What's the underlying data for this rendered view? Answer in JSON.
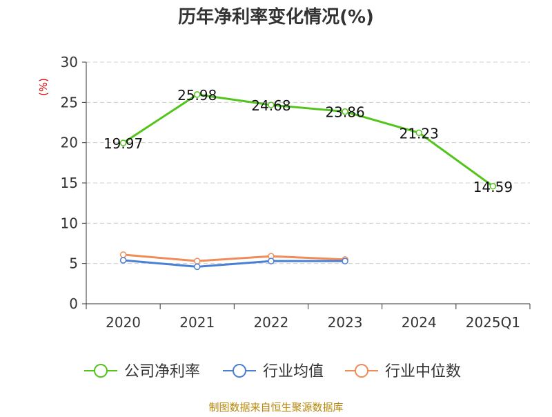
{
  "chart_data": {
    "type": "line",
    "title": "历年净利率变化情况(%)",
    "y_unit": "(%)",
    "categories": [
      "2020",
      "2021",
      "2022",
      "2023",
      "2024",
      "2025Q1"
    ],
    "y_ticks": [
      "0",
      "5",
      "10",
      "15",
      "20",
      "25",
      "30"
    ],
    "ylim": [
      0,
      30
    ],
    "grid": true,
    "legend_position": "bottom",
    "series": [
      {
        "name": "公司净利率",
        "color": "#52c41a",
        "values": [
          19.97,
          25.98,
          24.68,
          23.86,
          21.23,
          14.59
        ],
        "labels": [
          "19.97",
          "25.98",
          "24.68",
          "23.86",
          "21.23",
          "14.59"
        ]
      },
      {
        "name": "行业均值",
        "color": "#4a7fd6",
        "values": [
          5.4,
          4.6,
          5.3,
          5.3,
          null,
          null
        ]
      },
      {
        "name": "行业中位数",
        "color": "#f08c5a",
        "values": [
          6.1,
          5.3,
          5.9,
          5.5,
          null,
          null
        ]
      }
    ]
  },
  "source": "制图数据来自恒生聚源数据库"
}
